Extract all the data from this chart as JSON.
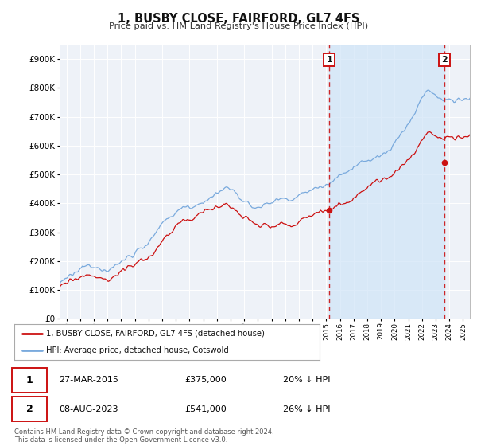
{
  "title": "1, BUSBY CLOSE, FAIRFORD, GL7 4FS",
  "subtitle": "Price paid vs. HM Land Registry's House Price Index (HPI)",
  "footnote": "Contains HM Land Registry data © Crown copyright and database right 2024.\nThis data is licensed under the Open Government Licence v3.0.",
  "legend_line1": "1, BUSBY CLOSE, FAIRFORD, GL7 4FS (detached house)",
  "legend_line2": "HPI: Average price, detached house, Cotswold",
  "marker1_label": "1",
  "marker1_date": "27-MAR-2015",
  "marker1_price": "£375,000",
  "marker1_hpi": "20% ↓ HPI",
  "marker2_label": "2",
  "marker2_date": "08-AUG-2023",
  "marker2_price": "£541,000",
  "marker2_hpi": "26% ↓ HPI",
  "hpi_color": "#7aaadd",
  "hpi_fill_color": "#d0e4f7",
  "price_color": "#cc1111",
  "marker_line_color": "#cc1111",
  "bg_color": "#ffffff",
  "plot_bg_color": "#eef2f8",
  "grid_color": "#ffffff",
  "ylim": [
    0,
    950000
  ],
  "yticks": [
    0,
    100000,
    200000,
    300000,
    400000,
    500000,
    600000,
    700000,
    800000,
    900000
  ],
  "ytick_labels": [
    "£0",
    "£100K",
    "£200K",
    "£300K",
    "£400K",
    "£500K",
    "£600K",
    "£700K",
    "£800K",
    "£900K"
  ],
  "marker1_x": 2015.23,
  "marker1_y": 375000,
  "marker2_x": 2023.62,
  "marker2_y": 541000,
  "xlim_left": 1995.5,
  "xlim_right": 2025.5
}
